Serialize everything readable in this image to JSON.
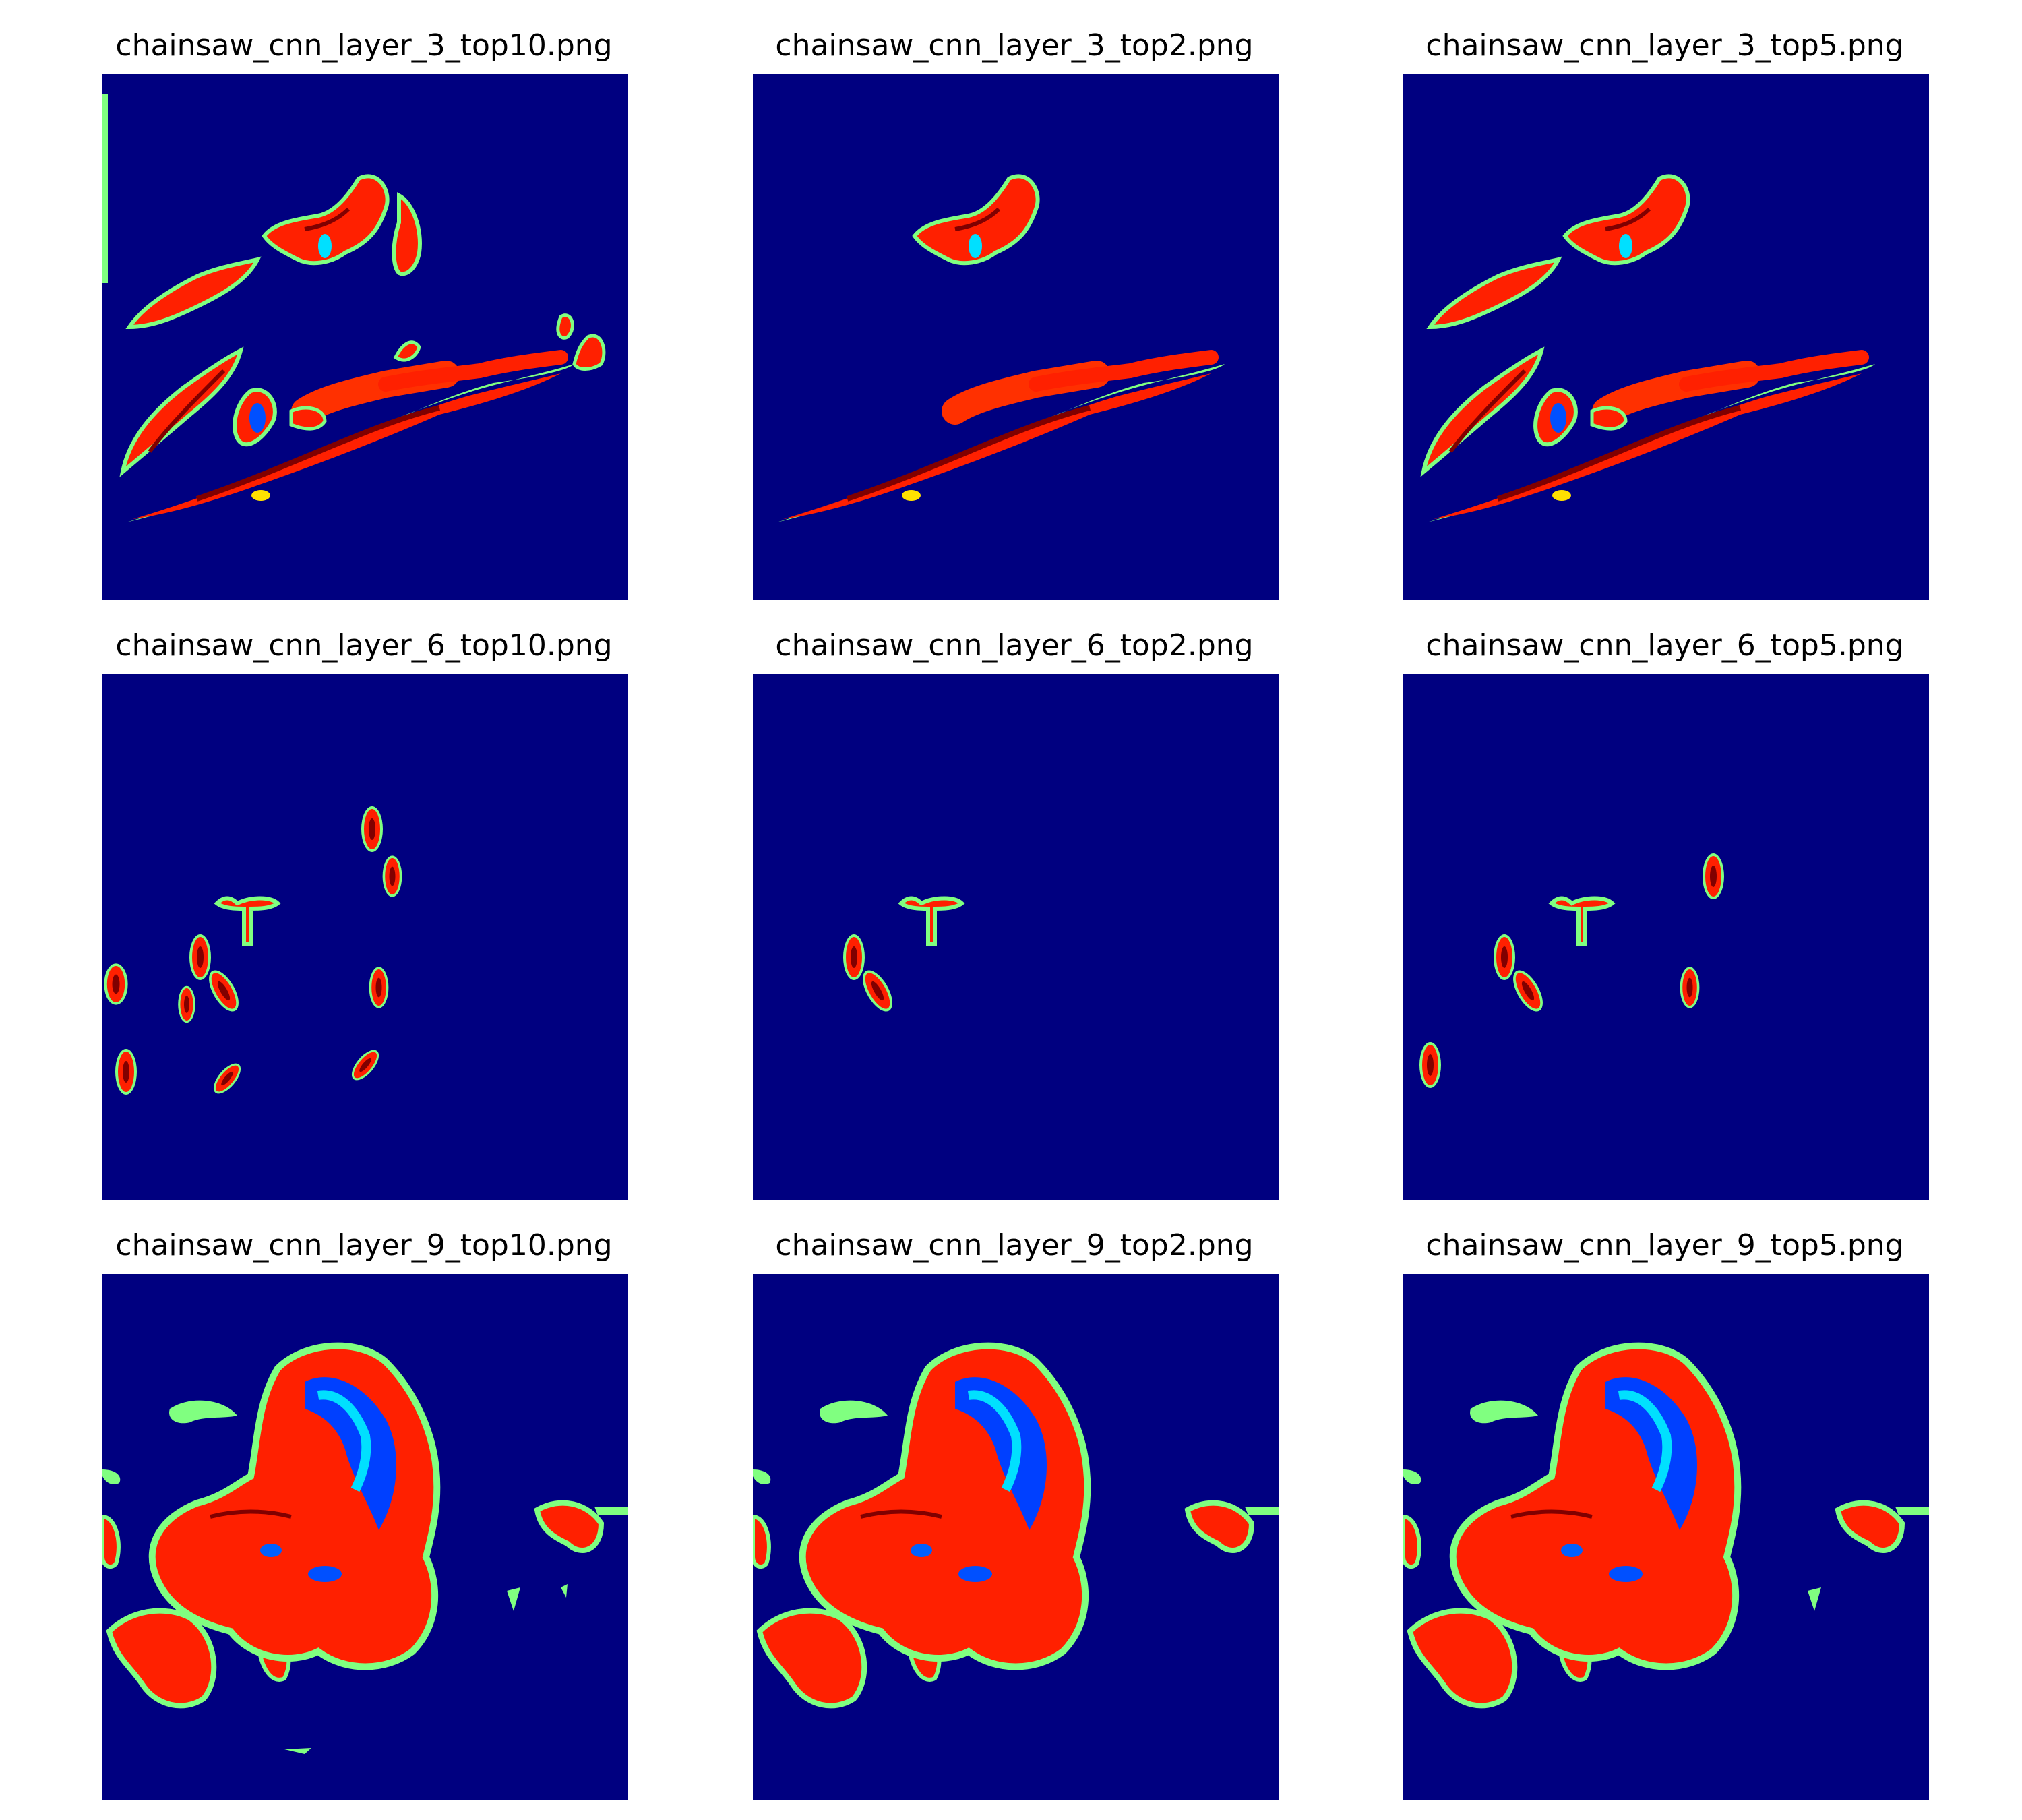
{
  "figure": {
    "colormap_colors": {
      "background": "#000080",
      "low": "#00e0ff",
      "mid": "#80ff80",
      "high": "#ff2000",
      "peak": "#800000"
    }
  },
  "panels": [
    {
      "title": "chainsaw_cnn_layer_3_top10.png"
    },
    {
      "title": "chainsaw_cnn_layer_3_top2.png"
    },
    {
      "title": "chainsaw_cnn_layer_3_top5.png"
    },
    {
      "title": "chainsaw_cnn_layer_6_top10.png"
    },
    {
      "title": "chainsaw_cnn_layer_6_top2.png"
    },
    {
      "title": "chainsaw_cnn_layer_6_top5.png"
    },
    {
      "title": "chainsaw_cnn_layer_9_top10.png"
    },
    {
      "title": "chainsaw_cnn_layer_9_top2.png"
    },
    {
      "title": "chainsaw_cnn_layer_9_top5.png"
    }
  ]
}
